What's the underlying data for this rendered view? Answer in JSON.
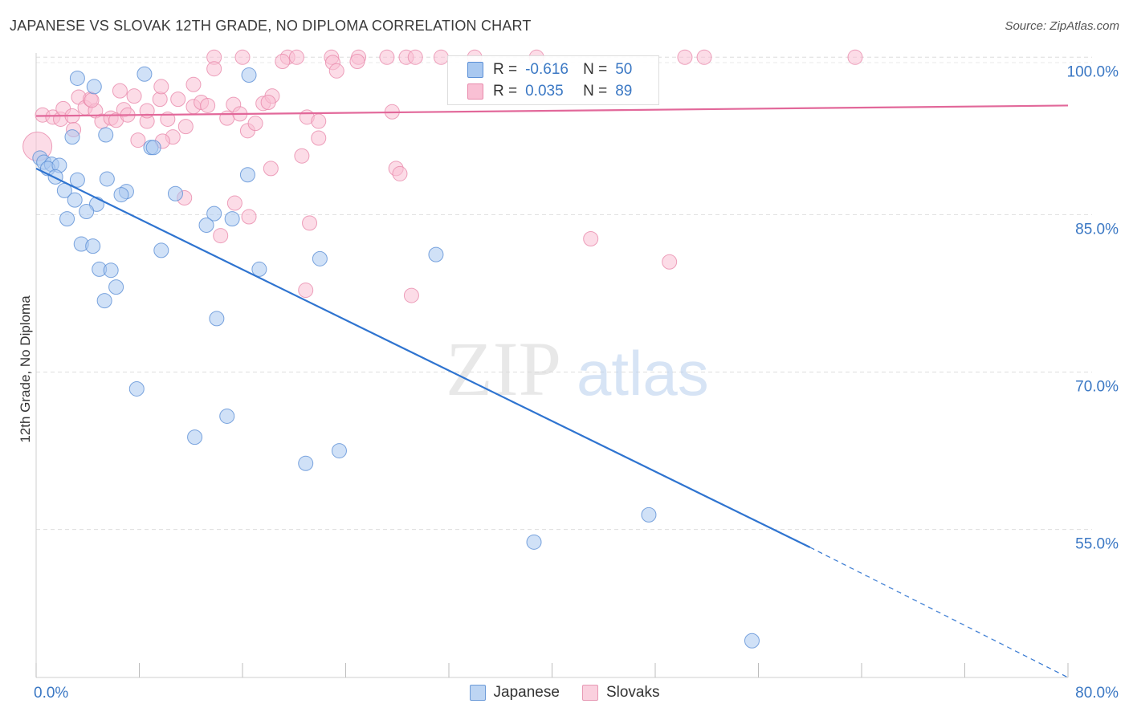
{
  "header": {
    "title": "JAPANESE VS SLOVAK 12TH GRADE, NO DIPLOMA CORRELATION CHART",
    "source": "Source: ZipAtlas.com"
  },
  "watermark": {
    "zip": "ZIP",
    "atlas": "atlas"
  },
  "legend": {
    "r_label": "R =",
    "n_label": "N =",
    "rows": [
      {
        "r": "-0.616",
        "n": "50",
        "color": "#a9c8f0",
        "border": "#5b8fd6"
      },
      {
        "r": "0.035",
        "n": "89",
        "color": "#f9c0d4",
        "border": "#e88aab"
      }
    ]
  },
  "bottom_legend": [
    {
      "label": "Japanese",
      "color": "#bdd5f3",
      "border": "#6d9bd8"
    },
    {
      "label": "Slovaks",
      "color": "#fad0de",
      "border": "#e79ab5"
    }
  ],
  "chart_data": {
    "type": "scatter",
    "title": "JAPANESE VS SLOVAK 12TH GRADE, NO DIPLOMA CORRELATION CHART",
    "xlabel": "",
    "ylabel": "12th Grade, No Diploma",
    "xlim": [
      0,
      80
    ],
    "ylim": [
      40.9,
      100.1
    ],
    "x_tick_labels": [
      "0.0%",
      "80.0%"
    ],
    "y_ticks": [
      55,
      70,
      85,
      100
    ],
    "y_tick_labels": [
      "55.0%",
      "70.0%",
      "85.0%",
      "100.0%"
    ],
    "grid": true,
    "legend_position": "top-center",
    "series": [
      {
        "name": "Japanese",
        "color": "#a9c8f0",
        "stroke": "#5b8fd6",
        "line_color": "#2f74d0",
        "points": [
          [
            0.3,
            90.4
          ],
          [
            0.6,
            90.0
          ],
          [
            1.2,
            89.8
          ],
          [
            0.9,
            89.4
          ],
          [
            1.8,
            89.7
          ],
          [
            1.5,
            88.6
          ],
          [
            3.2,
            98.0
          ],
          [
            4.5,
            97.2
          ],
          [
            8.4,
            98.4
          ],
          [
            16.5,
            98.3
          ],
          [
            2.8,
            92.4
          ],
          [
            5.4,
            92.6
          ],
          [
            8.9,
            91.4
          ],
          [
            9.1,
            91.4
          ],
          [
            3.2,
            88.3
          ],
          [
            2.2,
            87.3
          ],
          [
            5.5,
            88.4
          ],
          [
            7.0,
            87.2
          ],
          [
            6.6,
            86.9
          ],
          [
            3.0,
            86.4
          ],
          [
            4.7,
            86.0
          ],
          [
            10.8,
            87.0
          ],
          [
            16.4,
            88.8
          ],
          [
            2.4,
            84.6
          ],
          [
            3.9,
            85.3
          ],
          [
            13.8,
            85.1
          ],
          [
            15.2,
            84.6
          ],
          [
            13.2,
            84.0
          ],
          [
            3.5,
            82.2
          ],
          [
            4.4,
            82.0
          ],
          [
            9.7,
            81.6
          ],
          [
            22.0,
            80.8
          ],
          [
            31.0,
            81.2
          ],
          [
            4.9,
            79.8
          ],
          [
            5.8,
            79.7
          ],
          [
            17.3,
            79.8
          ],
          [
            6.2,
            78.1
          ],
          [
            5.3,
            76.8
          ],
          [
            14.0,
            75.1
          ],
          [
            7.8,
            68.4
          ],
          [
            14.8,
            65.8
          ],
          [
            12.3,
            63.8
          ],
          [
            20.9,
            61.3
          ],
          [
            23.5,
            62.5
          ],
          [
            47.5,
            56.4
          ],
          [
            38.6,
            53.8
          ],
          [
            55.5,
            44.4
          ]
        ],
        "trend": {
          "x0": 0,
          "y0": 89.4,
          "x1": 60.0,
          "y1": 53.3,
          "dashed_to_x": 80,
          "dashed_to_y": 40.9
        }
      },
      {
        "name": "Slovaks",
        "color": "#f9c0d4",
        "stroke": "#e88aab",
        "line_color": "#e2689a",
        "points": [
          [
            0.1,
            91.5
          ],
          [
            0.5,
            94.5
          ],
          [
            1.3,
            94.3
          ],
          [
            1.9,
            94.1
          ],
          [
            2.1,
            95.1
          ],
          [
            2.8,
            94.4
          ],
          [
            3.3,
            96.2
          ],
          [
            3.8,
            95.2
          ],
          [
            4.2,
            96.0
          ],
          [
            4.6,
            94.9
          ],
          [
            5.1,
            93.9
          ],
          [
            5.8,
            94.2
          ],
          [
            6.2,
            94.0
          ],
          [
            6.8,
            95.0
          ],
          [
            7.1,
            94.5
          ],
          [
            7.6,
            96.3
          ],
          [
            8.6,
            93.9
          ],
          [
            8.6,
            94.9
          ],
          [
            9.6,
            96.0
          ],
          [
            10.2,
            94.1
          ],
          [
            10.6,
            92.4
          ],
          [
            11.6,
            93.4
          ],
          [
            12.2,
            95.3
          ],
          [
            12.8,
            95.7
          ],
          [
            13.3,
            95.4
          ],
          [
            14.8,
            94.2
          ],
          [
            15.3,
            95.5
          ],
          [
            15.8,
            94.6
          ],
          [
            16.4,
            93.0
          ],
          [
            17.0,
            93.7
          ],
          [
            17.6,
            95.6
          ],
          [
            18.3,
            96.3
          ],
          [
            18.0,
            95.7
          ],
          [
            4.3,
            95.9
          ],
          [
            2.9,
            93.1
          ],
          [
            9.7,
            97.2
          ],
          [
            12.2,
            97.4
          ],
          [
            6.5,
            96.8
          ],
          [
            11.0,
            96.0
          ],
          [
            13.8,
            100.0
          ],
          [
            16.0,
            100.0
          ],
          [
            19.5,
            100.0
          ],
          [
            20.2,
            100.0
          ],
          [
            22.9,
            100.0
          ],
          [
            25.0,
            100.0
          ],
          [
            27.2,
            100.0
          ],
          [
            28.7,
            100.0
          ],
          [
            29.4,
            100.0
          ],
          [
            31.4,
            100.0
          ],
          [
            34.0,
            100.0
          ],
          [
            50.3,
            100.0
          ],
          [
            51.8,
            100.0
          ],
          [
            63.5,
            100.0
          ],
          [
            38.8,
            100.0
          ],
          [
            13.8,
            98.9
          ],
          [
            23.0,
            99.5
          ],
          [
            23.3,
            98.7
          ],
          [
            24.9,
            99.6
          ],
          [
            19.1,
            99.6
          ],
          [
            21.0,
            94.3
          ],
          [
            21.9,
            93.9
          ],
          [
            21.9,
            92.3
          ],
          [
            27.6,
            94.8
          ],
          [
            7.9,
            92.1
          ],
          [
            9.8,
            92.0
          ],
          [
            20.6,
            90.6
          ],
          [
            18.2,
            89.4
          ],
          [
            27.9,
            89.4
          ],
          [
            28.2,
            88.9
          ],
          [
            11.5,
            86.6
          ],
          [
            15.4,
            86.1
          ],
          [
            16.5,
            84.8
          ],
          [
            21.2,
            84.2
          ],
          [
            14.3,
            83.0
          ],
          [
            43.0,
            82.7
          ],
          [
            49.1,
            80.5
          ],
          [
            20.9,
            77.8
          ],
          [
            29.1,
            77.3
          ]
        ],
        "trend": {
          "x0": 0,
          "y0": 94.4,
          "x1": 80,
          "y1": 95.4
        }
      }
    ]
  }
}
